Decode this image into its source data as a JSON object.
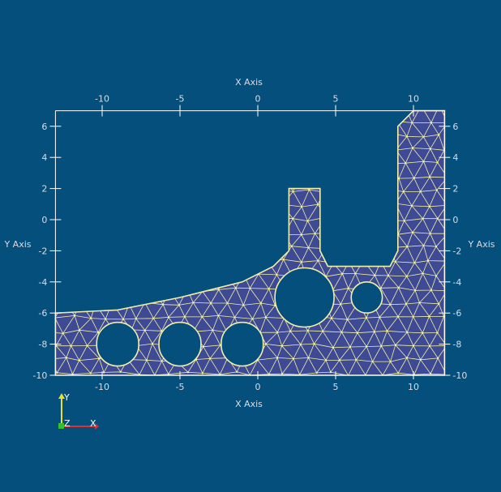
{
  "scene": {
    "background_color": "#044f7c",
    "mesh_fill_color": "#3e4a94",
    "mesh_edge_color": "#f2f0a8",
    "axes_grid_color": "#ffffff",
    "label_color": "#d7dde6",
    "x_axis_title": "X Axis",
    "y_axis_title": "Y Axis",
    "x_ticks": [
      -10,
      -5,
      0,
      5,
      10
    ],
    "y_ticks": [
      6,
      4,
      2,
      0,
      -2,
      -4,
      -6,
      -8,
      -10
    ],
    "x_range": [
      -13,
      12
    ],
    "y_range": [
      -10,
      7
    ]
  },
  "geometry": {
    "outline": [
      [
        -13,
        -10
      ],
      [
        12,
        -10
      ],
      [
        12,
        7
      ],
      [
        10,
        7
      ],
      [
        9,
        6
      ],
      [
        9,
        -2
      ],
      [
        8.5,
        -3
      ],
      [
        6,
        -3
      ],
      [
        4.5,
        -3
      ],
      [
        4,
        -2
      ],
      [
        4,
        2
      ],
      [
        2,
        2
      ],
      [
        2,
        -2
      ],
      [
        1,
        -3
      ],
      [
        -1,
        -4
      ],
      [
        -5,
        -5
      ],
      [
        -9,
        -5.8
      ],
      [
        -13,
        -6
      ]
    ],
    "holes": [
      {
        "cx": -9,
        "cy": -8,
        "r": 1.35
      },
      {
        "cx": -5,
        "cy": -8,
        "r": 1.35
      },
      {
        "cx": -1,
        "cy": -8,
        "r": 1.35
      },
      {
        "cx": 3,
        "cy": -5,
        "r": 1.9
      },
      {
        "cx": 7,
        "cy": -5,
        "r": 1.0
      }
    ]
  },
  "orientation_triad": {
    "x_label": "X",
    "y_label": "Y",
    "z_label": "Z",
    "x_color": "#e03030",
    "y_color": "#e8e030",
    "z_color": "#30c030"
  }
}
